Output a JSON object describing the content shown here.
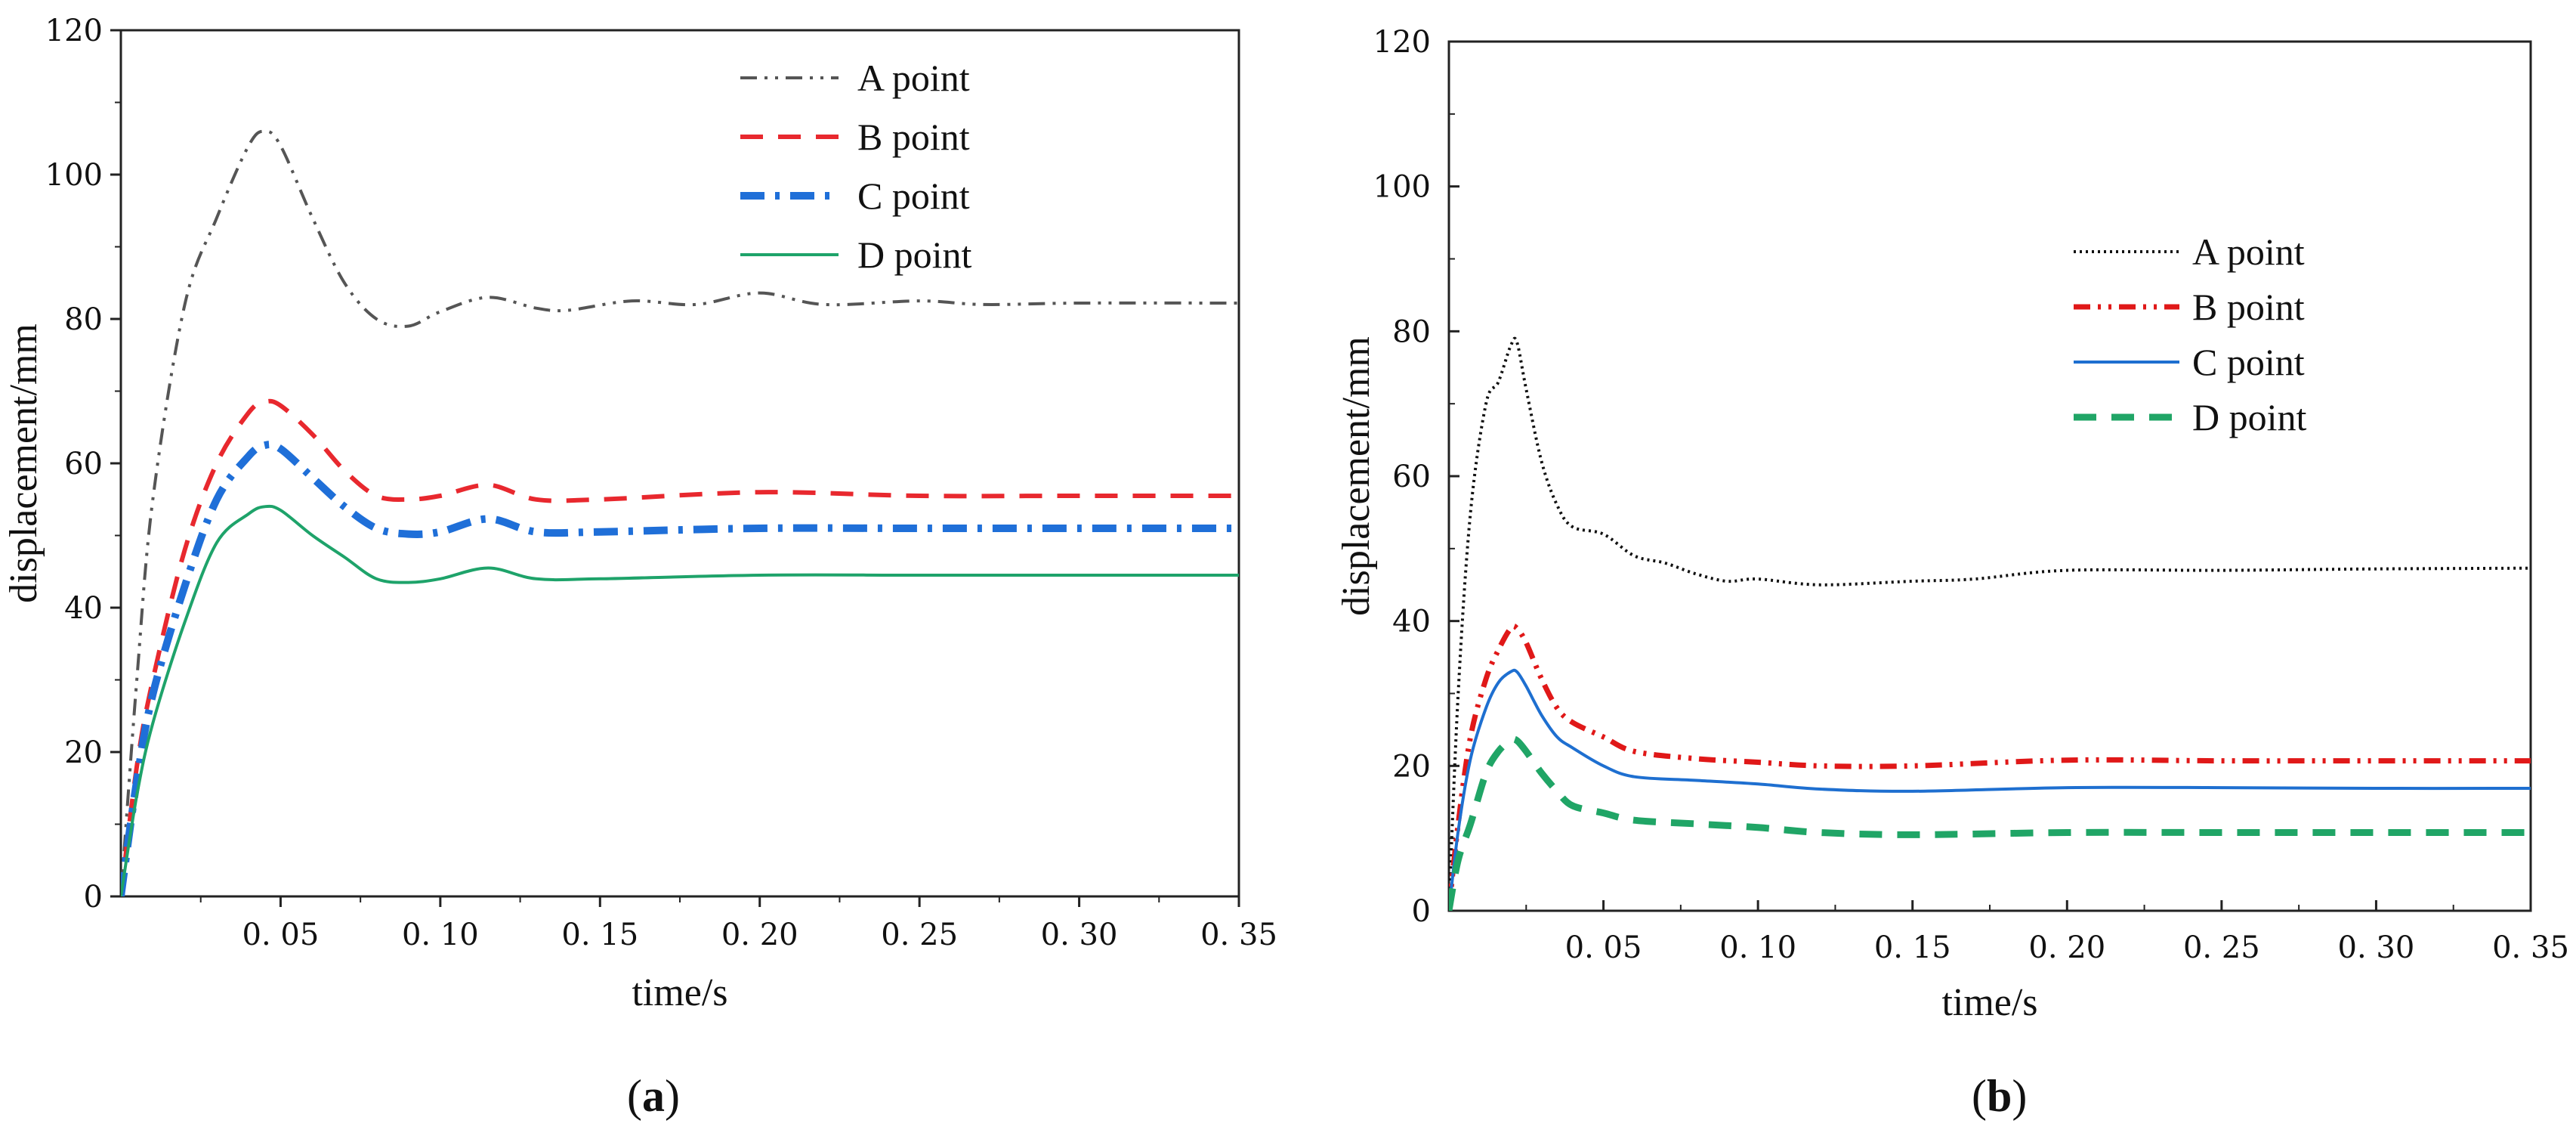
{
  "chart_data": [
    {
      "type": "line",
      "panel": "a",
      "caption_open": "(",
      "caption_letter": "a",
      "caption_close": ")",
      "xlabel": "time/s",
      "ylabel": "displacement/mm",
      "xlim": [
        0,
        0.35
      ],
      "ylim": [
        0,
        120
      ],
      "x_ticks": [
        0.05,
        0.1,
        0.15,
        0.2,
        0.25,
        0.3,
        0.35
      ],
      "x_tick_labels": [
        "0. 05",
        "0. 10",
        "0. 15",
        "0. 20",
        "0. 25",
        "0. 30",
        "0. 35"
      ],
      "y_ticks": [
        0,
        20,
        40,
        60,
        80,
        100,
        120
      ],
      "y_tick_labels": [
        "0",
        "20",
        "40",
        "60",
        "80",
        "100",
        "120"
      ],
      "legend_position": "top-right",
      "series": [
        {
          "name": "A point",
          "color": "#555555",
          "dash": "dashdotdot",
          "x": [
            0,
            0.005,
            0.01,
            0.02,
            0.03,
            0.04,
            0.045,
            0.05,
            0.06,
            0.07,
            0.08,
            0.09,
            0.1,
            0.115,
            0.13,
            0.14,
            0.16,
            0.18,
            0.2,
            0.22,
            0.25,
            0.27,
            0.3,
            0.35
          ],
          "y": [
            0,
            30,
            55,
            82,
            94,
            104,
            106,
            104,
            94,
            85,
            80,
            79,
            81,
            83,
            81.5,
            81.2,
            82.5,
            82,
            83.6,
            82,
            82.5,
            82,
            82.2,
            82.2
          ]
        },
        {
          "name": "B point",
          "color": "#e8282e",
          "dash": "dash",
          "x": [
            0,
            0.005,
            0.01,
            0.02,
            0.03,
            0.04,
            0.045,
            0.05,
            0.06,
            0.07,
            0.08,
            0.09,
            0.1,
            0.115,
            0.13,
            0.15,
            0.2,
            0.25,
            0.3,
            0.35
          ],
          "y": [
            0,
            18,
            30,
            48,
            60,
            67,
            68.5,
            68,
            64,
            59,
            55.5,
            55,
            55.5,
            57,
            55,
            55,
            56,
            55.5,
            55.5,
            55.5
          ]
        },
        {
          "name": "C point",
          "color": "#1f6fd8",
          "dash": "dashdot",
          "x": [
            0,
            0.005,
            0.01,
            0.02,
            0.03,
            0.04,
            0.045,
            0.05,
            0.06,
            0.07,
            0.08,
            0.09,
            0.1,
            0.115,
            0.13,
            0.15,
            0.2,
            0.25,
            0.3,
            0.35
          ],
          "y": [
            0,
            16,
            28,
            43,
            55,
            61,
            62.5,
            62,
            58,
            54,
            51,
            50.2,
            50.5,
            52.3,
            50.5,
            50.5,
            51,
            51,
            51,
            51
          ]
        },
        {
          "name": "D point",
          "color": "#1ea36a",
          "dash": "solid",
          "x": [
            0,
            0.005,
            0.01,
            0.02,
            0.03,
            0.04,
            0.045,
            0.05,
            0.06,
            0.07,
            0.08,
            0.09,
            0.1,
            0.115,
            0.13,
            0.15,
            0.2,
            0.25,
            0.3,
            0.35
          ],
          "y": [
            0,
            14,
            24,
            38,
            49,
            53,
            54,
            53.5,
            50,
            47,
            44,
            43.5,
            44,
            45.5,
            44,
            44,
            44.5,
            44.5,
            44.5,
            44.5
          ]
        }
      ]
    },
    {
      "type": "line",
      "panel": "b",
      "caption_open": "(",
      "caption_letter": "b",
      "caption_close": ")",
      "xlabel": "time/s",
      "ylabel": "displacement/mm",
      "xlim": [
        0,
        0.35
      ],
      "ylim": [
        0,
        120
      ],
      "x_ticks": [
        0.05,
        0.1,
        0.15,
        0.2,
        0.25,
        0.3,
        0.35
      ],
      "x_tick_labels": [
        "0. 05",
        "0. 10",
        "0. 15",
        "0. 20",
        "0. 25",
        "0. 30",
        "0. 35"
      ],
      "y_ticks": [
        0,
        20,
        40,
        60,
        80,
        100,
        120
      ],
      "y_tick_labels": [
        "0",
        "20",
        "40",
        "60",
        "80",
        "100",
        "120"
      ],
      "legend_position": "upper-right",
      "series": [
        {
          "name": "A point",
          "color": "#111111",
          "dash": "dot",
          "x": [
            0,
            0.003,
            0.007,
            0.012,
            0.016,
            0.02,
            0.022,
            0.025,
            0.03,
            0.035,
            0.04,
            0.05,
            0.06,
            0.07,
            0.08,
            0.09,
            0.1,
            0.12,
            0.15,
            0.17,
            0.2,
            0.25,
            0.3,
            0.35
          ],
          "y": [
            0,
            30,
            55,
            70,
            73,
            78,
            78.5,
            72,
            62,
            56,
            53,
            52,
            49,
            48,
            46.5,
            45.5,
            45.8,
            45,
            45.5,
            45.8,
            47,
            47,
            47.2,
            47.3
          ]
        },
        {
          "name": "B point",
          "color": "#e01818",
          "dash": "dashdotdot",
          "x": [
            0,
            0.003,
            0.007,
            0.012,
            0.016,
            0.02,
            0.022,
            0.025,
            0.03,
            0.035,
            0.04,
            0.05,
            0.06,
            0.08,
            0.1,
            0.12,
            0.15,
            0.2,
            0.25,
            0.3,
            0.35
          ],
          "y": [
            0,
            12,
            24,
            32,
            36,
            39,
            39,
            37,
            32,
            28,
            26,
            24,
            22,
            21,
            20.5,
            20,
            20,
            20.8,
            20.7,
            20.7,
            20.7
          ]
        },
        {
          "name": "C point",
          "color": "#1e6fd0",
          "dash": "solid",
          "x": [
            0,
            0.003,
            0.007,
            0.012,
            0.016,
            0.02,
            0.022,
            0.025,
            0.03,
            0.035,
            0.04,
            0.05,
            0.06,
            0.08,
            0.1,
            0.12,
            0.15,
            0.2,
            0.25,
            0.3,
            0.35
          ],
          "y": [
            0,
            11,
            21,
            28,
            31.5,
            33,
            33,
            31,
            27,
            24,
            22.5,
            20,
            18.5,
            18,
            17.5,
            16.8,
            16.5,
            17,
            17,
            16.9,
            16.9
          ]
        },
        {
          "name": "D point",
          "color": "#20a566",
          "dash": "dash",
          "x": [
            0,
            0.003,
            0.007,
            0.012,
            0.016,
            0.02,
            0.022,
            0.025,
            0.03,
            0.035,
            0.04,
            0.05,
            0.06,
            0.08,
            0.1,
            0.12,
            0.15,
            0.2,
            0.25,
            0.3,
            0.35
          ],
          "y": [
            0,
            7,
            12,
            19,
            22,
            23.5,
            23.5,
            22,
            19,
            16.5,
            14.5,
            13.5,
            12.5,
            12,
            11.5,
            10.8,
            10.5,
            10.8,
            10.8,
            10.8,
            10.8
          ]
        }
      ]
    }
  ]
}
